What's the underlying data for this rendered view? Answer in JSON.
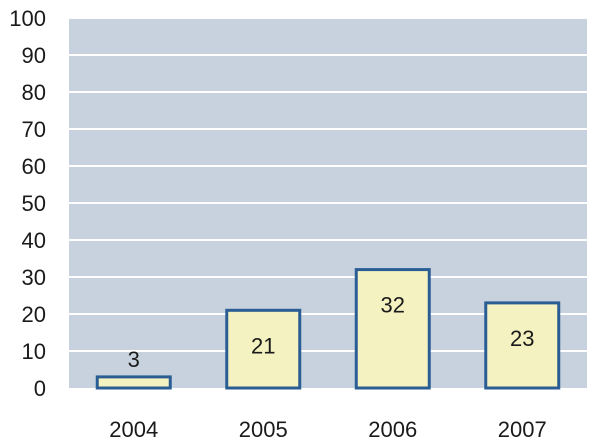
{
  "chart_data": {
    "type": "bar",
    "categories": [
      "2004",
      "2005",
      "2006",
      "2007"
    ],
    "values": [
      3,
      21,
      32,
      23
    ],
    "data_labels": [
      "3",
      "21",
      "32",
      "23"
    ],
    "y_ticks": [
      "0",
      "10",
      "20",
      "30",
      "40",
      "50",
      "60",
      "70",
      "80",
      "90",
      "100"
    ],
    "ylim": [
      0,
      100
    ],
    "grid": true,
    "legend": "none",
    "title": "",
    "xlabel": "",
    "ylabel": ""
  },
  "colors": {
    "plot_background": "#c8d2de",
    "gridline": "#ffffff",
    "bar_fill": "#f5f2c2",
    "bar_stroke": "#2a5d93",
    "text": "#1a1a1a"
  }
}
